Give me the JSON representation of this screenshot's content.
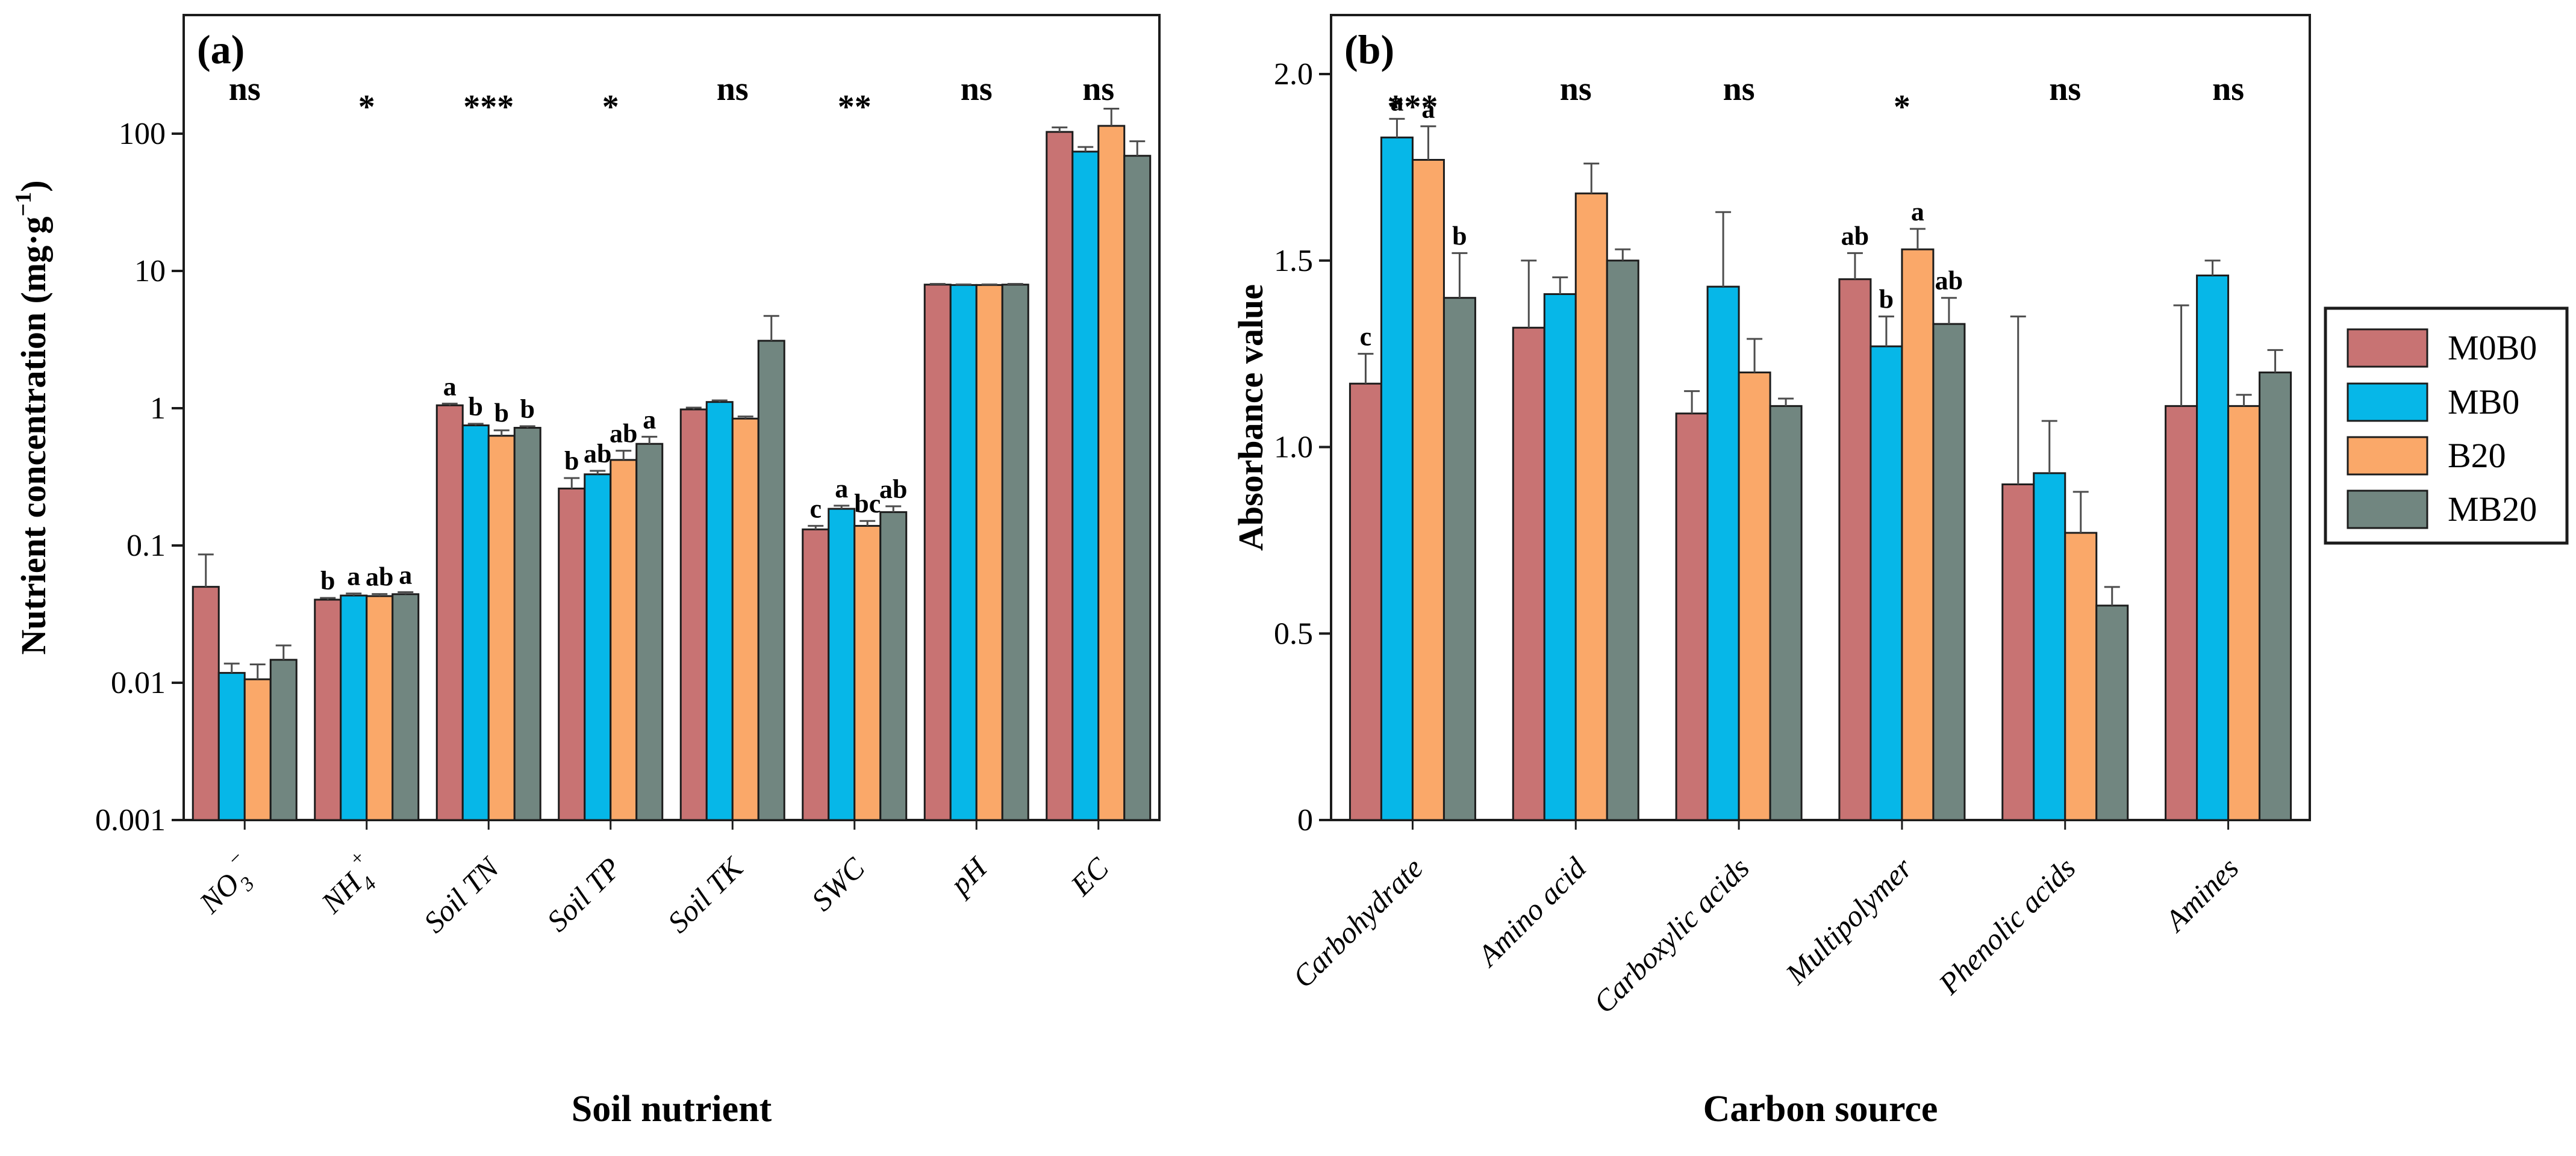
{
  "chart_data": [
    {
      "type": "bar",
      "panel_tag": "(a)",
      "xlabel": "Soil nutrient",
      "ylabel": {
        "pre": "Nutrient concentration (mg·g",
        "sup": "−1",
        "post": ")"
      },
      "yscale": "log",
      "ylim": [
        0.001,
        700
      ],
      "grid": false,
      "yticks": [
        {
          "v": 100,
          "label": "100"
        },
        {
          "v": 10,
          "label": "10"
        },
        {
          "v": 1,
          "label": "1"
        },
        {
          "v": 0.1,
          "label": "0.1"
        },
        {
          "v": 0.01,
          "label": "0.01"
        },
        {
          "v": 0.001,
          "label": "0.001"
        }
      ],
      "series": [
        "M0B0",
        "MB0",
        "B20",
        "MB20"
      ],
      "groups": [
        {
          "label": {
            "base": "NO",
            "sub": "3",
            "sup": "−"
          },
          "significance": "ns",
          "letters": null,
          "values": [
            0.05,
            0.0118,
            0.0106,
            0.0147
          ],
          "errors": [
            0.036,
            0.002,
            0.003,
            0.004
          ]
        },
        {
          "label": {
            "base": "NH",
            "sub": "4",
            "sup": "+"
          },
          "significance": "*",
          "letters": [
            "b",
            "a",
            "ab",
            "a"
          ],
          "values": [
            0.0403,
            0.0432,
            0.0428,
            0.0442
          ],
          "errors": [
            0.0012,
            0.0015,
            0.0015,
            0.0015
          ]
        },
        {
          "label": "Soil TN",
          "significance": "***",
          "letters": [
            "a",
            "b",
            "b",
            "b"
          ],
          "values": [
            1.05,
            0.75,
            0.63,
            0.72
          ],
          "errors": [
            0.03,
            0.02,
            0.06,
            0.02
          ]
        },
        {
          "label": "Soil TP",
          "significance": "*",
          "letters": [
            "b",
            "ab",
            "ab",
            "a"
          ],
          "values": [
            0.26,
            0.33,
            0.42,
            0.55
          ],
          "errors": [
            0.05,
            0.02,
            0.07,
            0.07
          ]
        },
        {
          "label": "Soil TK",
          "significance": "ns",
          "letters": null,
          "values": [
            0.98,
            1.11,
            0.84,
            3.1
          ],
          "errors": [
            0.03,
            0.03,
            0.03,
            1.6
          ]
        },
        {
          "label": "SWC",
          "significance": "**",
          "letters": [
            "c",
            "a",
            "bc",
            "ab"
          ],
          "values": [
            0.131,
            0.185,
            0.139,
            0.175
          ],
          "errors": [
            0.008,
            0.01,
            0.012,
            0.018
          ]
        },
        {
          "label": "pH",
          "significance": "ns",
          "letters": null,
          "values": [
            7.95,
            7.9,
            7.9,
            7.95
          ],
          "errors": [
            0.1,
            0.08,
            0.08,
            0.1
          ]
        },
        {
          "label": "EC",
          "significance": "ns",
          "letters": null,
          "values": [
            103,
            74,
            114,
            69
          ],
          "errors": [
            8,
            6,
            38,
            19
          ]
        }
      ]
    },
    {
      "type": "bar",
      "panel_tag": "(b)",
      "xlabel": "Carbon source",
      "ylabel": {
        "pre": "Absorbance value",
        "sup": "",
        "post": ""
      },
      "yscale": "linear",
      "ylim": [
        0,
        2.16
      ],
      "grid": false,
      "yticks": [
        {
          "v": 2.0,
          "label": "2.0"
        },
        {
          "v": 1.5,
          "label": "1.5"
        },
        {
          "v": 1.0,
          "label": "1.0"
        },
        {
          "v": 0.5,
          "label": "0.5"
        },
        {
          "v": 0,
          "label": "0"
        }
      ],
      "series": [
        "M0B0",
        "MB0",
        "B20",
        "MB20"
      ],
      "groups": [
        {
          "label": "Carbohydrate",
          "significance": "***",
          "letters": [
            "c",
            "a",
            "a",
            "b"
          ],
          "values": [
            1.17,
            1.83,
            1.77,
            1.4
          ],
          "errors": [
            0.08,
            0.05,
            0.09,
            0.12
          ]
        },
        {
          "label": "Amino acid",
          "significance": "ns",
          "letters": null,
          "values": [
            1.32,
            1.41,
            1.68,
            1.5
          ],
          "errors": [
            0.18,
            0.045,
            0.08,
            0.03
          ]
        },
        {
          "label": "Carboxylic acids",
          "significance": "ns",
          "letters": null,
          "values": [
            1.09,
            1.43,
            1.2,
            1.11
          ],
          "errors": [
            0.06,
            0.2,
            0.09,
            0.02
          ]
        },
        {
          "label": "Multipolymer",
          "significance": "*",
          "letters": [
            "ab",
            "b",
            "a",
            "ab"
          ],
          "values": [
            1.45,
            1.27,
            1.53,
            1.33
          ],
          "errors": [
            0.07,
            0.08,
            0.055,
            0.07
          ]
        },
        {
          "label": "Phenolic acids",
          "significance": "ns",
          "letters": null,
          "values": [
            0.9,
            0.93,
            0.77,
            0.575
          ],
          "errors": [
            0.45,
            0.14,
            0.11,
            0.05
          ]
        },
        {
          "label": "Amines",
          "significance": "ns",
          "letters": null,
          "values": [
            1.11,
            1.46,
            1.11,
            1.2
          ],
          "errors": [
            0.27,
            0.04,
            0.03,
            0.06
          ]
        }
      ]
    }
  ],
  "legend": {
    "entries": [
      {
        "label": "M0B0",
        "color": "#c87373"
      },
      {
        "label": "MB0",
        "color": "#06b7e8"
      },
      {
        "label": "B20",
        "color": "#faa869"
      },
      {
        "label": "MB20",
        "color": "#718680"
      }
    ]
  },
  "style": {
    "bar_outline": "#1c1c1c",
    "error_color": "#4d4d4d",
    "frame_color": "#1c1c1c",
    "background": "#ffffff"
  }
}
